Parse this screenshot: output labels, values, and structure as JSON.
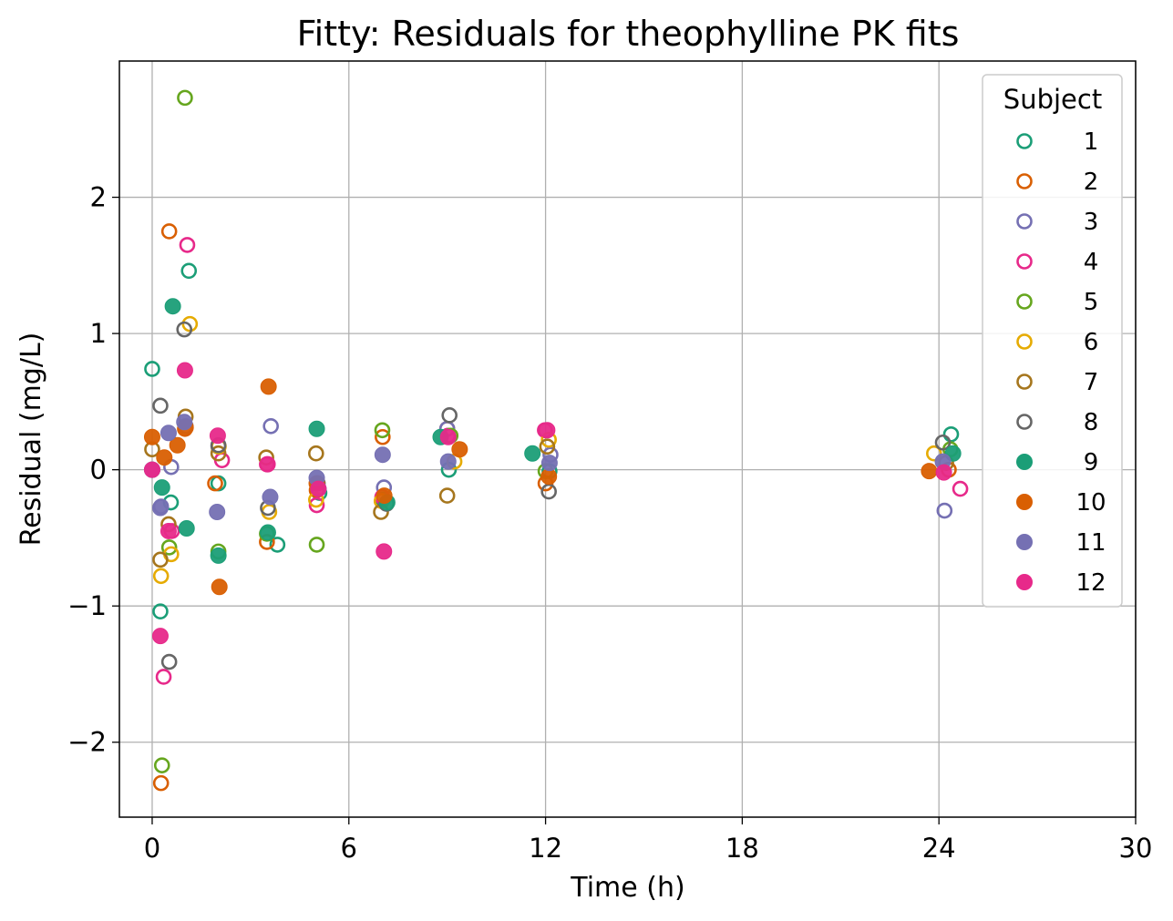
{
  "chart_data": {
    "type": "scatter",
    "title": "Fitty: Residuals for theophylline PK fits",
    "xlabel": "Time (h)",
    "ylabel": "Residual (mg/L)",
    "xlim": [
      -1.0,
      30
    ],
    "ylim": [
      -2.55,
      3.0
    ],
    "xticks": [
      0,
      6,
      12,
      18,
      24,
      30
    ],
    "xtick_labels": [
      "0",
      "6",
      "12",
      "18",
      "24",
      "30"
    ],
    "yticks": [
      -2,
      -1,
      0,
      1,
      2
    ],
    "ytick_labels": [
      "−2",
      "−1",
      "0",
      "1",
      "2"
    ],
    "grid": true,
    "legend_title": "Subject",
    "legend_position": "top-right",
    "series": [
      {
        "name": "1",
        "color": "#1b9e77",
        "marker": "open",
        "x": [
          0.0,
          0.25,
          0.57,
          1.12,
          2.02,
          3.82,
          5.1,
          7.03,
          9.05,
          12.12,
          24.37
        ],
        "y": [
          0.74,
          -1.04,
          -0.24,
          1.46,
          -0.1,
          -0.55,
          -0.17,
          -0.22,
          0.0,
          -0.01,
          0.26
        ]
      },
      {
        "name": "2",
        "color": "#d95f02",
        "marker": "open",
        "x": [
          0.0,
          0.27,
          0.52,
          1.0,
          1.92,
          3.5,
          5.02,
          7.03,
          9.0,
          12.0,
          24.3
        ],
        "y": [
          0.0,
          -2.3,
          1.75,
          0.3,
          -0.1,
          -0.53,
          -0.15,
          0.24,
          0.3,
          -0.1,
          0.0
        ]
      },
      {
        "name": "3",
        "color": "#7570b3",
        "marker": "open",
        "x": [
          0.0,
          0.27,
          0.58,
          1.02,
          2.02,
          3.62,
          5.08,
          7.07,
          9.0,
          12.15,
          24.17
        ],
        "y": [
          0.0,
          -0.27,
          0.02,
          0.32,
          0.17,
          0.32,
          -0.14,
          -0.13,
          0.3,
          0.11,
          -0.3
        ]
      },
      {
        "name": "4",
        "color": "#e7298a",
        "marker": "open",
        "x": [
          0.0,
          0.35,
          0.6,
          1.07,
          2.13,
          3.5,
          5.02,
          7.02,
          9.02,
          11.98,
          24.65
        ],
        "y": [
          0.0,
          -1.52,
          -0.45,
          1.65,
          0.07,
          0.04,
          -0.26,
          -0.2,
          0.25,
          0.29,
          -0.14
        ]
      },
      {
        "name": "5",
        "color": "#66a61e",
        "marker": "open",
        "x": [
          0.0,
          0.3,
          0.52,
          1.0,
          2.02,
          3.5,
          5.02,
          7.02,
          9.1,
          12.0,
          24.35
        ],
        "y": [
          0.0,
          -2.17,
          -0.57,
          2.73,
          -0.6,
          -0.47,
          -0.55,
          0.29,
          0.25,
          -0.01,
          0.15
        ]
      },
      {
        "name": "6",
        "color": "#e6ab02",
        "marker": "open",
        "x": [
          0.0,
          0.27,
          0.58,
          1.15,
          2.03,
          3.57,
          5.0,
          7.0,
          9.22,
          12.1,
          23.85
        ],
        "y": [
          0.0,
          -0.78,
          -0.62,
          1.07,
          0.17,
          -0.31,
          -0.22,
          -0.23,
          0.06,
          0.22,
          0.12
        ]
      },
      {
        "name": "7",
        "color": "#a6761d",
        "marker": "open",
        "x": [
          0.0,
          0.25,
          0.5,
          1.02,
          2.02,
          3.48,
          5.0,
          6.98,
          9.0,
          12.05,
          24.22
        ],
        "y": [
          0.15,
          -0.66,
          -0.4,
          0.39,
          0.12,
          0.09,
          0.12,
          -0.31,
          -0.19,
          0.17,
          0.05
        ]
      },
      {
        "name": "8",
        "color": "#666666",
        "marker": "open",
        "x": [
          0.0,
          0.25,
          0.52,
          0.98,
          2.02,
          3.53,
          5.05,
          7.15,
          9.07,
          12.1,
          24.12
        ],
        "y": [
          0.0,
          0.47,
          -1.41,
          1.03,
          0.18,
          -0.28,
          -0.1,
          -0.25,
          0.4,
          -0.16,
          0.2
        ]
      },
      {
        "name": "9",
        "color": "#1b9e77",
        "marker": "filled",
        "x": [
          0.0,
          0.3,
          0.63,
          1.05,
          2.02,
          3.53,
          5.02,
          7.17,
          8.8,
          11.6,
          24.43
        ],
        "y": [
          0.0,
          -0.13,
          1.2,
          -0.43,
          -0.63,
          -0.46,
          0.3,
          -0.24,
          0.24,
          0.12,
          0.12
        ]
      },
      {
        "name": "10",
        "color": "#d95f02",
        "marker": "filled",
        "x": [
          0.0,
          0.37,
          0.77,
          1.02,
          2.05,
          3.55,
          5.02,
          7.08,
          9.38,
          12.1,
          23.7
        ],
        "y": [
          0.24,
          0.09,
          0.18,
          0.31,
          -0.86,
          0.61,
          -0.1,
          -0.19,
          0.15,
          -0.05,
          -0.01
        ]
      },
      {
        "name": "11",
        "color": "#7570b3",
        "marker": "filled",
        "x": [
          0.0,
          0.25,
          0.5,
          0.98,
          1.98,
          3.6,
          5.02,
          7.03,
          9.03,
          12.12,
          24.12
        ],
        "y": [
          0.0,
          -0.28,
          0.27,
          0.35,
          -0.31,
          -0.2,
          -0.06,
          0.11,
          0.06,
          0.05,
          0.06
        ]
      },
      {
        "name": "12",
        "color": "#e7298a",
        "marker": "filled",
        "x": [
          0.0,
          0.25,
          0.5,
          1.0,
          2.0,
          3.52,
          5.07,
          7.07,
          9.03,
          12.05,
          24.15
        ],
        "y": [
          0.0,
          -1.22,
          -0.45,
          0.73,
          0.25,
          0.04,
          -0.14,
          -0.6,
          0.24,
          0.29,
          -0.02
        ]
      }
    ]
  }
}
